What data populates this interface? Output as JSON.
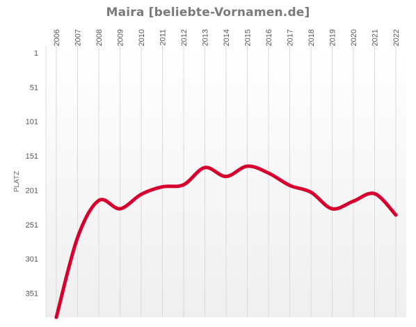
{
  "chart_data": {
    "type": "line",
    "title": "Maira [beliebte-Vornamen.de]",
    "xlabel": "",
    "ylabel": "PLATZ",
    "x": [
      "2006",
      "2007",
      "2008",
      "2009",
      "2010",
      "2011",
      "2012",
      "2013",
      "2014",
      "2015",
      "2016",
      "2017",
      "2018",
      "2019",
      "2020",
      "2021",
      "2022"
    ],
    "y_ticks": [
      1,
      51,
      101,
      151,
      201,
      251,
      301,
      351
    ],
    "ylim": [
      1,
      386
    ],
    "y_reversed": true,
    "grid": "vertical",
    "series": [
      {
        "values": [
          386,
          270,
          216,
          228,
          207,
          196,
          193,
          168,
          181,
          166,
          176,
          194,
          204,
          228,
          217,
          206,
          237
        ],
        "color": "#d6002e"
      }
    ]
  }
}
